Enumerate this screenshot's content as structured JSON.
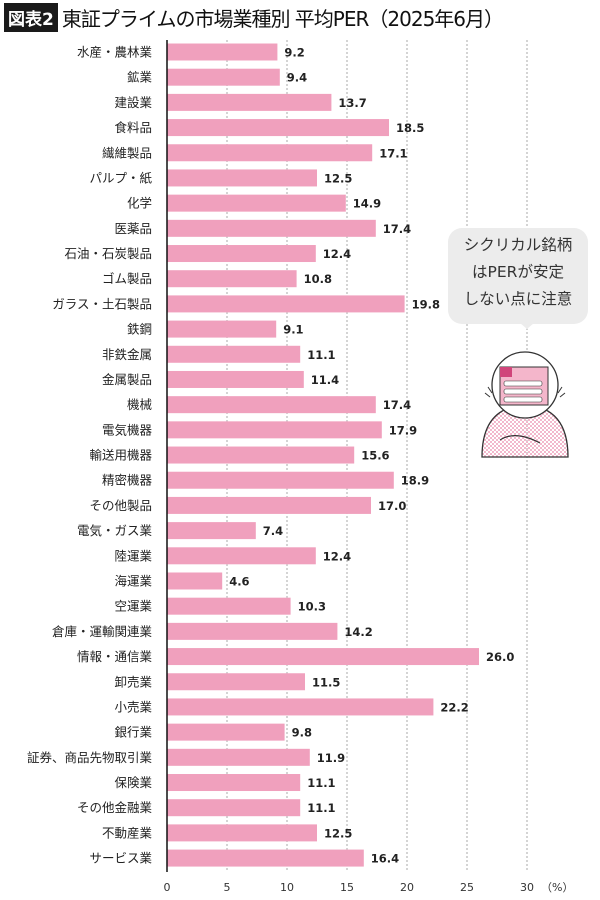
{
  "header": {
    "badge": "図表2",
    "title": "東証プライムの市場業種別 平均PER（2025年6月）"
  },
  "bubble": {
    "lines": [
      "シクリカル銘柄",
      "はPERが安定",
      "しない点に注意"
    ]
  },
  "chart_data": {
    "type": "bar",
    "orientation": "horizontal",
    "title": "東証プライムの市場業種別 平均PER（2025年6月）",
    "categories": [
      "水産・農林業",
      "鉱業",
      "建設業",
      "食料品",
      "繊維製品",
      "パルプ・紙",
      "化学",
      "医薬品",
      "石油・石炭製品",
      "ゴム製品",
      "ガラス・土石製品",
      "鉄鋼",
      "非鉄金属",
      "金属製品",
      "機械",
      "電気機器",
      "輸送用機器",
      "精密機器",
      "その他製品",
      "電気・ガス業",
      "陸運業",
      "海運業",
      "空運業",
      "倉庫・運輸関連業",
      "情報・通信業",
      "卸売業",
      "小売業",
      "銀行業",
      "証券、商品先物取引業",
      "保険業",
      "その他金融業",
      "不動産業",
      "サービス業"
    ],
    "values": [
      9.2,
      9.4,
      13.7,
      18.5,
      17.1,
      12.5,
      14.9,
      17.4,
      12.4,
      10.8,
      19.8,
      9.1,
      11.1,
      11.4,
      17.4,
      17.9,
      15.6,
      18.9,
      17.0,
      7.4,
      12.4,
      4.6,
      10.3,
      14.2,
      26.0,
      11.5,
      22.2,
      9.8,
      11.9,
      11.1,
      11.1,
      12.5,
      16.4
    ],
    "xlim": [
      0,
      30
    ],
    "xticks": [
      "0",
      "5",
      "10",
      "15",
      "20",
      "25",
      "30"
    ],
    "xunit": "（%）",
    "grid": true,
    "bar_color": "#f0a0bd"
  }
}
